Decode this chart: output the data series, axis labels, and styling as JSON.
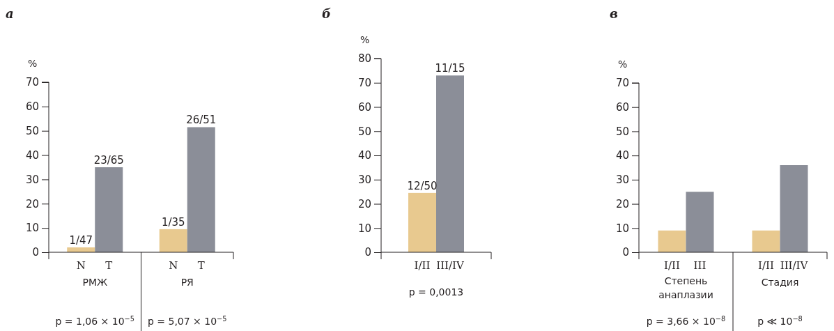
{
  "chart_data": [
    {
      "type": "bar",
      "title": "а",
      "ylabel": "%",
      "categories": [
        "N",
        "T",
        "N",
        "T"
      ],
      "values": [
        2,
        35,
        9.5,
        51.5
      ],
      "colors": [
        "#e8c98f",
        "#8b8e98",
        "#e8c98f",
        "#8b8e98"
      ],
      "value_labels": [
        "1/47",
        "23/65",
        "1/35",
        "26/51"
      ],
      "ylim": [
        0,
        70
      ],
      "yticks": [
        0,
        10,
        20,
        30,
        40,
        50,
        60,
        70
      ],
      "grid": false,
      "annotations": [
        "РМЖ",
        "РЯ",
        "p = 1,06 × 10$^{−5}$",
        "p = 5,07 × 10$^{−5}$"
      ]
    },
    {
      "type": "bar",
      "title": "б",
      "ylabel": "%",
      "categories": [
        "I/II",
        "III/IV"
      ],
      "values": [
        24.5,
        73
      ],
      "colors": [
        "#e8c98f",
        "#8b8e98"
      ],
      "value_labels": [
        "12/50",
        "11/15"
      ],
      "ylim": [
        0,
        80
      ],
      "yticks": [
        0,
        10,
        20,
        30,
        40,
        50,
        60,
        70,
        80
      ],
      "grid": false,
      "annotations": [
        "p = 0,0013"
      ]
    },
    {
      "type": "bar",
      "title": "в",
      "ylabel": "%",
      "categories": [
        "I/II",
        "III",
        "I/II",
        "III/IV"
      ],
      "values": [
        9,
        25,
        9,
        36
      ],
      "colors": [
        "#e8c98f",
        "#8b8e98",
        "#e8c98f",
        "#8b8e98"
      ],
      "ylim": [
        0,
        70
      ],
      "yticks": [
        0,
        10,
        20,
        30,
        40,
        50,
        60,
        70
      ],
      "grid": false,
      "annotations": [
        "Степень анаплазии",
        "Стадия",
        "p = 3,66 × 10$^{−8}$",
        "p ≪ 10$^{−8}$"
      ]
    }
  ]
}
